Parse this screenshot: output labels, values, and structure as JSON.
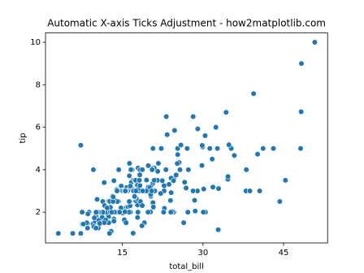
{
  "chart_data": {
    "type": "scatter",
    "title": "Automatic X-axis Ticks Adjustment - how2matplotlib.com",
    "x_label": "total_bill",
    "y_label": "tip",
    "color": "#1f77b4",
    "grid": false,
    "xlim": [
      0.68,
      53.2
    ],
    "ylim": [
      0.55,
      10.45
    ],
    "xticks": [
      15,
      30,
      45
    ],
    "yticks": [
      2,
      4,
      6,
      8,
      10
    ],
    "x": [
      16.99,
      10.34,
      21.01,
      23.68,
      24.59,
      25.29,
      8.77,
      26.88,
      15.04,
      14.78,
      10.27,
      35.26,
      15.42,
      18.43,
      14.83,
      21.58,
      10.33,
      16.29,
      16.97,
      20.65,
      17.92,
      20.29,
      15.77,
      39.42,
      19.82,
      17.81,
      13.37,
      12.69,
      21.7,
      19.65,
      9.55,
      18.35,
      15.06,
      20.69,
      17.78,
      24.06,
      16.31,
      16.93,
      18.69,
      31.27,
      16.04,
      17.46,
      13.94,
      9.68,
      30.4,
      18.29,
      22.23,
      32.4,
      28.55,
      18.04,
      12.54,
      10.29,
      34.81,
      9.94,
      25.56,
      19.49,
      38.01,
      26.41,
      11.24,
      48.27,
      20.29,
      13.81,
      11.02,
      18.29,
      17.59,
      20.08,
      16.45,
      3.07,
      20.23,
      15.01,
      12.02,
      17.07,
      26.86,
      25.28,
      14.73,
      10.51,
      17.92,
      27.2,
      22.76,
      17.29,
      19.44,
      16.66,
      10.07,
      32.68,
      15.98,
      34.83,
      13.03,
      18.28,
      24.71,
      21.16,
      28.97,
      22.49,
      5.75,
      16.32,
      22.75,
      40.17,
      27.28,
      12.03,
      21.01,
      12.46,
      11.35,
      15.38,
      44.3,
      22.42,
      20.92,
      15.36,
      20.49,
      25.21,
      18.24,
      14.31,
      14.0,
      7.25,
      38.07,
      23.95,
      25.71,
      17.31,
      29.93,
      10.65,
      12.43,
      24.08,
      11.69,
      13.42,
      14.26,
      15.95,
      12.48,
      29.8,
      8.52,
      14.52,
      11.38,
      22.82,
      19.08,
      20.27,
      11.17,
      12.26,
      18.26,
      8.51,
      10.33,
      14.15,
      16.0,
      13.16,
      17.47,
      34.3,
      41.19,
      27.05,
      16.43,
      8.35,
      18.64,
      11.87,
      9.78,
      7.51,
      14.07,
      13.13,
      17.26,
      24.55,
      19.77,
      29.85,
      48.17,
      25.0,
      13.39,
      16.49,
      21.5,
      12.66,
      16.21,
      13.81,
      17.51,
      24.52,
      20.76,
      31.71,
      10.59,
      10.63,
      50.81,
      15.81,
      7.25,
      31.85,
      16.82,
      32.9,
      17.89,
      14.48,
      9.6,
      34.63,
      34.65,
      23.33,
      45.35,
      23.17,
      40.55,
      20.69,
      20.9,
      30.46,
      18.15,
      23.1,
      15.69,
      19.81,
      28.44,
      15.48,
      16.58,
      7.56,
      10.34,
      43.11,
      13.0,
      13.51,
      18.71,
      12.74,
      13.0,
      16.4,
      20.53,
      16.47,
      26.59,
      38.73,
      24.27,
      12.76,
      30.06,
      25.89,
      48.33,
      13.27,
      28.17,
      12.9,
      28.15,
      11.59,
      7.74,
      30.14,
      12.16,
      13.42,
      8.58,
      15.98,
      13.42,
      16.27,
      10.09,
      20.45,
      13.28,
      22.12,
      24.01,
      15.69,
      11.61,
      10.77,
      15.53,
      10.07,
      12.6,
      32.83,
      35.83,
      29.03,
      27.18,
      22.67,
      17.82,
      18.78
    ],
    "values": [
      1.01,
      1.66,
      3.5,
      3.31,
      3.61,
      4.71,
      2.0,
      3.12,
      1.96,
      3.23,
      1.71,
      5.0,
      1.57,
      3.0,
      3.02,
      3.92,
      1.67,
      3.71,
      3.5,
      3.35,
      4.08,
      2.75,
      2.23,
      7.58,
      3.18,
      2.34,
      2.0,
      2.0,
      4.3,
      3.0,
      1.45,
      2.5,
      3.0,
      2.45,
      3.27,
      3.6,
      2.0,
      3.07,
      2.31,
      5.0,
      2.24,
      2.54,
      3.06,
      1.32,
      5.6,
      3.0,
      5.0,
      6.0,
      2.05,
      3.0,
      2.5,
      2.6,
      5.2,
      1.56,
      4.34,
      3.51,
      3.0,
      1.5,
      1.76,
      6.73,
      3.21,
      2.0,
      1.98,
      3.76,
      2.64,
      3.15,
      2.47,
      1.0,
      2.01,
      2.09,
      1.97,
      3.0,
      3.14,
      5.0,
      2.2,
      1.25,
      3.08,
      4.0,
      3.0,
      2.71,
      3.0,
      3.4,
      1.83,
      5.0,
      2.03,
      5.17,
      2.0,
      4.0,
      5.85,
      3.0,
      3.0,
      3.5,
      1.0,
      4.3,
      3.25,
      4.73,
      4.0,
      1.5,
      3.0,
      1.5,
      2.5,
      3.0,
      2.5,
      3.48,
      4.08,
      1.64,
      4.06,
      4.29,
      3.76,
      4.0,
      3.0,
      1.0,
      4.0,
      2.55,
      4.0,
      3.5,
      5.07,
      1.5,
      1.8,
      2.92,
      2.31,
      1.68,
      2.5,
      2.0,
      2.52,
      4.2,
      1.48,
      2.0,
      2.0,
      2.18,
      1.5,
      2.83,
      1.5,
      2.0,
      3.25,
      1.25,
      2.0,
      2.0,
      2.0,
      2.75,
      3.5,
      6.7,
      5.0,
      5.0,
      2.3,
      1.5,
      1.36,
      1.63,
      1.73,
      2.0,
      2.5,
      2.0,
      2.74,
      2.0,
      2.0,
      5.14,
      5.0,
      3.75,
      2.61,
      2.0,
      3.5,
      2.5,
      2.0,
      2.0,
      3.0,
      3.48,
      2.24,
      4.5,
      1.61,
      2.0,
      10.0,
      3.16,
      5.15,
      3.18,
      4.0,
      3.11,
      2.0,
      2.0,
      4.0,
      3.55,
      3.68,
      5.65,
      3.5,
      6.5,
      3.0,
      5.0,
      3.5,
      2.0,
      3.5,
      4.0,
      1.5,
      4.19,
      2.56,
      2.02,
      4.0,
      1.44,
      2.0,
      5.0,
      2.0,
      2.0,
      4.0,
      2.01,
      2.0,
      2.5,
      4.0,
      3.23,
      3.41,
      3.0,
      2.03,
      2.23,
      2.0,
      5.16,
      9.0,
      2.5,
      6.5,
      1.1,
      3.0,
      1.5,
      1.44,
      3.09,
      2.2,
      3.48,
      1.92,
      3.0,
      1.58,
      2.5,
      2.0,
      3.0,
      2.72,
      2.88,
      2.0,
      3.0,
      3.39,
      1.47,
      3.0,
      1.25,
      1.0,
      1.17,
      4.67,
      5.92,
      2.0,
      2.0,
      1.75,
      3.0
    ]
  }
}
